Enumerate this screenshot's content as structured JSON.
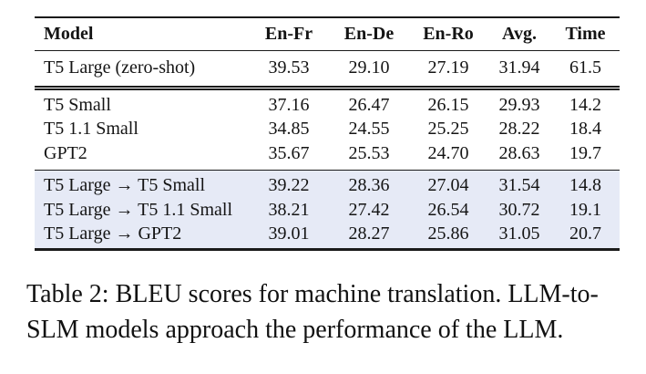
{
  "colors": {
    "highlight_row_bg": "#e6eaf6",
    "rule": "#1a1a1a",
    "text": "#141414"
  },
  "table": {
    "columns": [
      "Model",
      "En-Fr",
      "En-De",
      "En-Ro",
      "Avg.",
      "Time"
    ],
    "groups": [
      {
        "name": "llm-zero-shot",
        "highlight": false,
        "rows": [
          {
            "model": "T5 Large (zero-shot)",
            "values": [
              "39.53",
              "29.10",
              "27.19",
              "31.94",
              "61.5"
            ]
          }
        ]
      },
      {
        "name": "slm-baselines",
        "highlight": false,
        "rows": [
          {
            "model": "T5 Small",
            "values": [
              "37.16",
              "26.47",
              "26.15",
              "29.93",
              "14.2"
            ]
          },
          {
            "model": "T5 1.1 Small",
            "values": [
              "34.85",
              "24.55",
              "25.25",
              "28.22",
              "18.4"
            ]
          },
          {
            "model": "GPT2",
            "values": [
              "35.67",
              "25.53",
              "24.70",
              "28.63",
              "19.7"
            ]
          }
        ]
      },
      {
        "name": "llm-to-slm",
        "highlight": true,
        "rows": [
          {
            "model": "T5 Large → T5 Small",
            "values": [
              "39.22",
              "28.36",
              "27.04",
              "31.54",
              "14.8"
            ]
          },
          {
            "model": "T5 Large → T5 1.1 Small",
            "values": [
              "38.21",
              "27.42",
              "26.54",
              "30.72",
              "19.1"
            ]
          },
          {
            "model": "T5 Large → GPT2",
            "values": [
              "39.01",
              "28.27",
              "25.86",
              "31.05",
              "20.7"
            ]
          }
        ]
      }
    ]
  },
  "caption": {
    "full": "Table 2: BLEU scores for machine translation. LLM-to-SLM models approach the performance of the LLM.",
    "line1": "Table 2: BLEU scores for machine translation. LLM-to-",
    "line2": "SLM models approach the performance of the LLM."
  }
}
